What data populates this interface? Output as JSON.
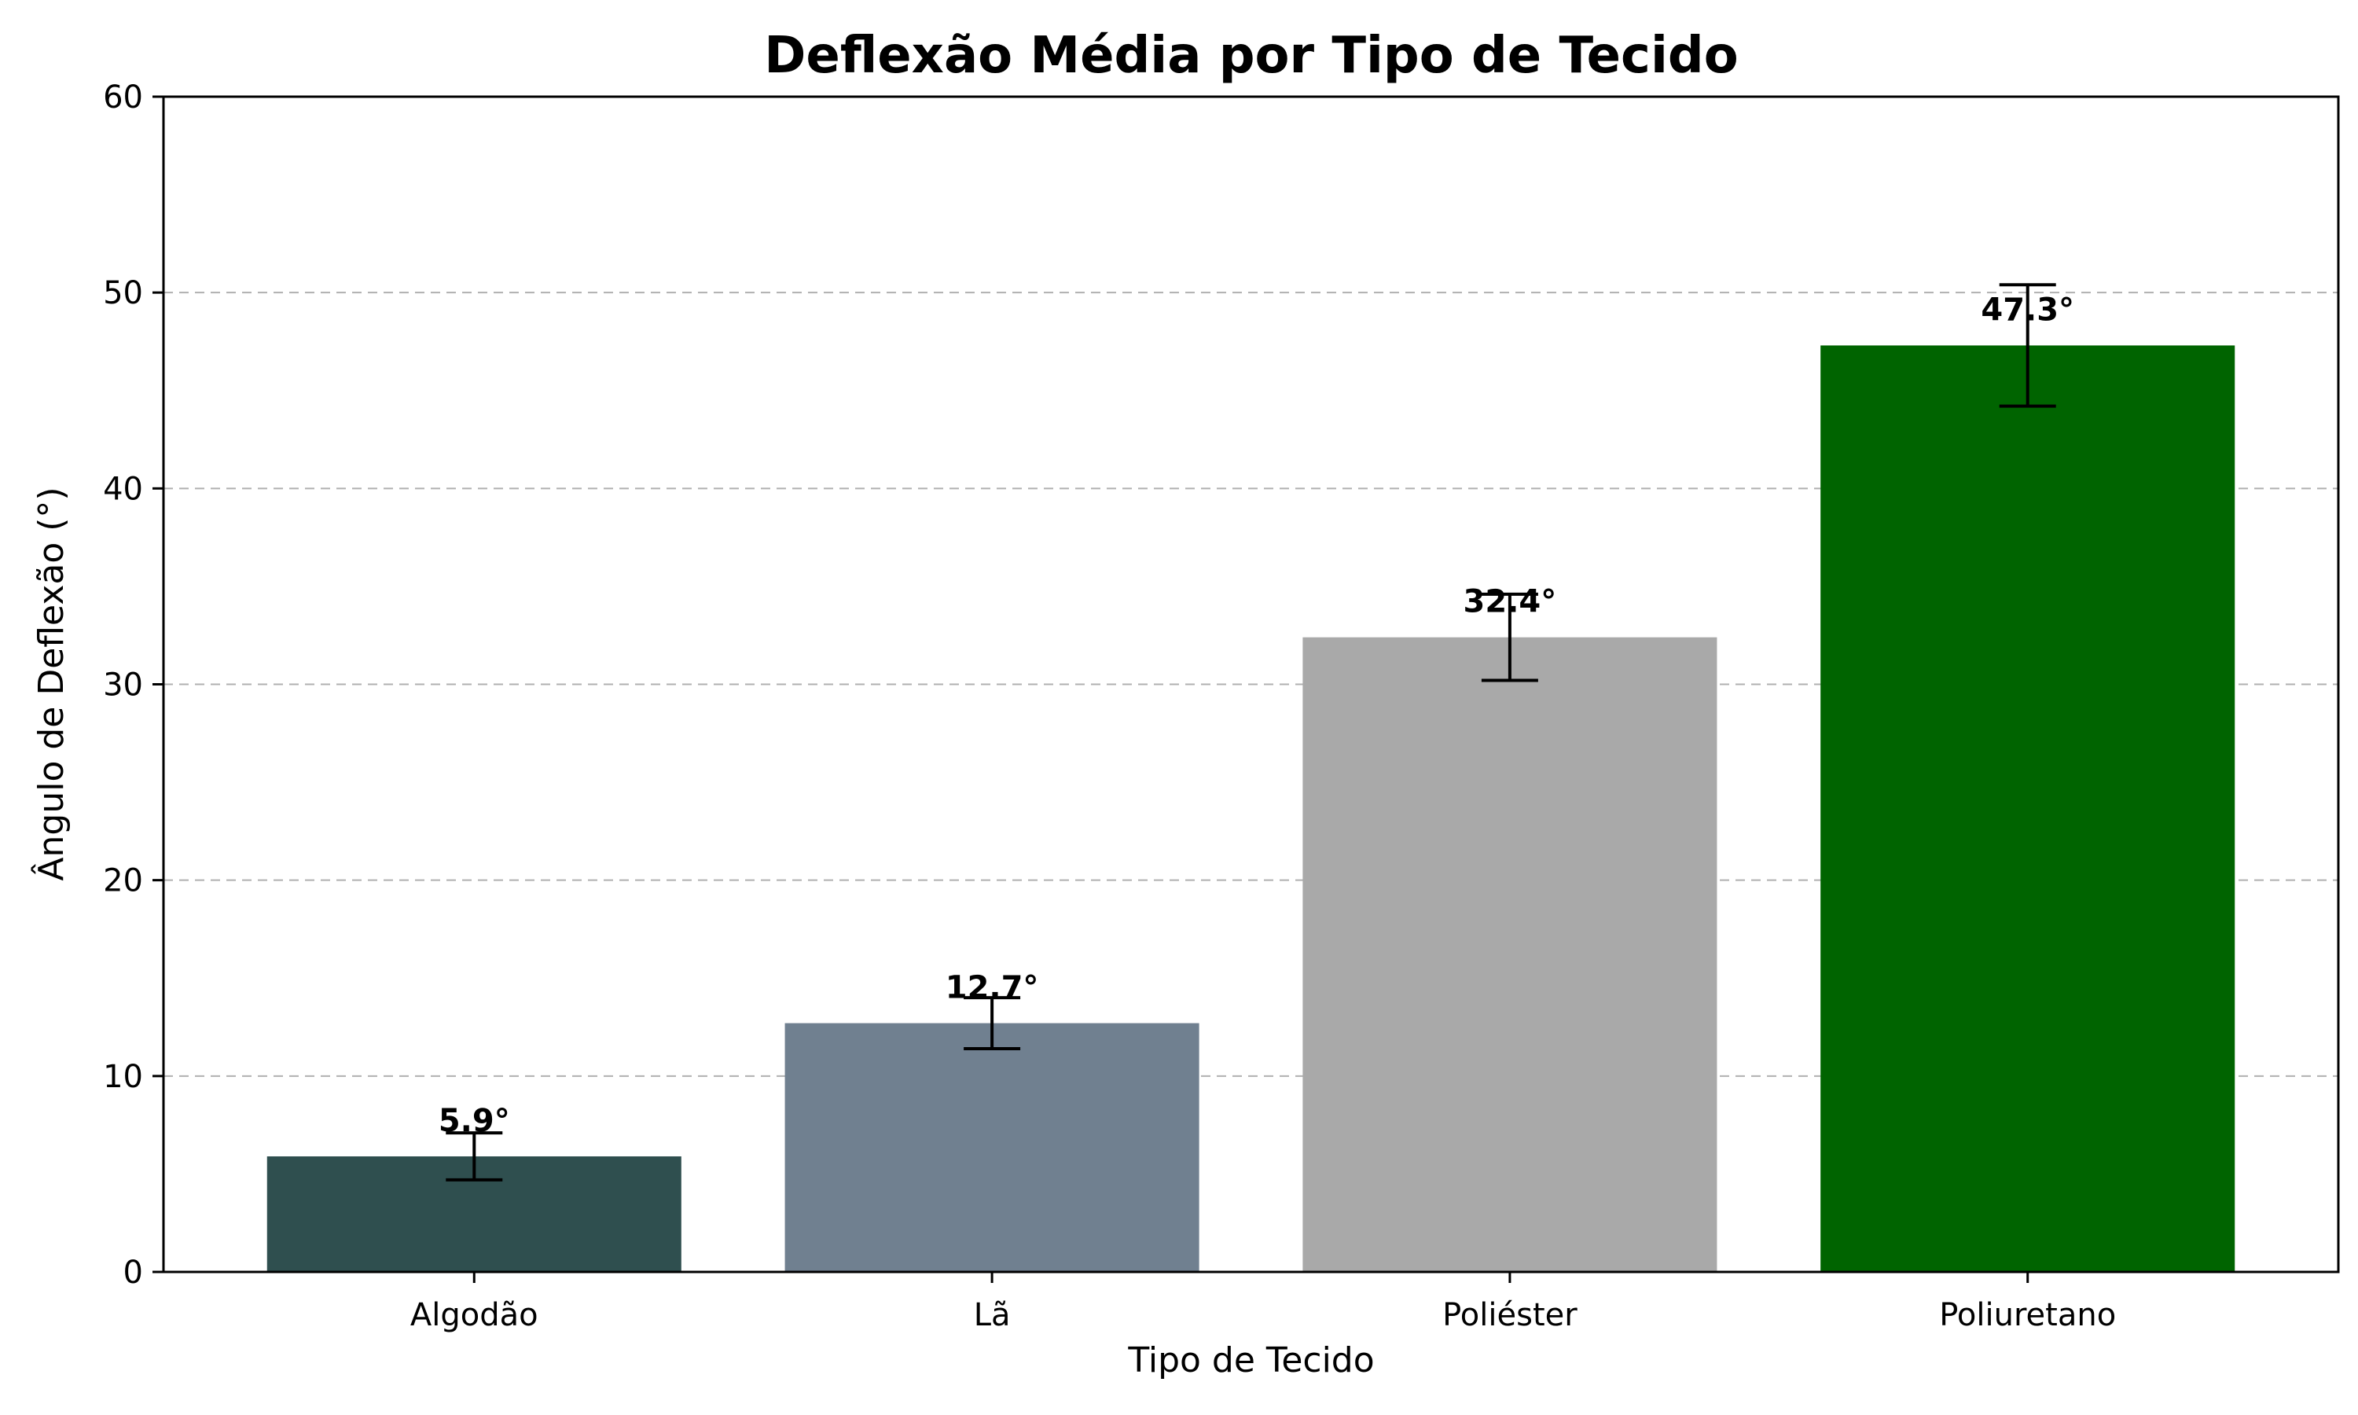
{
  "chart_data": {
    "type": "bar",
    "title": "Deflexão Média por Tipo de Tecido",
    "xlabel": "Tipo de Tecido",
    "ylabel": "Ângulo de Deflexão (°)",
    "categories": [
      "Algodão",
      "Lã",
      "Poliéster",
      "Poliuretano"
    ],
    "values": [
      5.9,
      12.7,
      32.4,
      47.3
    ],
    "errors": [
      1.2,
      1.3,
      2.2,
      3.1
    ],
    "value_labels": [
      "5.9°",
      "12.7°",
      "32.4°",
      "47.3°"
    ],
    "colors": [
      "#2f4f4f",
      "#708090",
      "#a9a9a9",
      "#006400"
    ],
    "ylim": [
      0,
      60
    ],
    "yticks": [
      0,
      10,
      20,
      30,
      40,
      50,
      60
    ],
    "grid": "horizontal-dashed",
    "legend": "none"
  }
}
